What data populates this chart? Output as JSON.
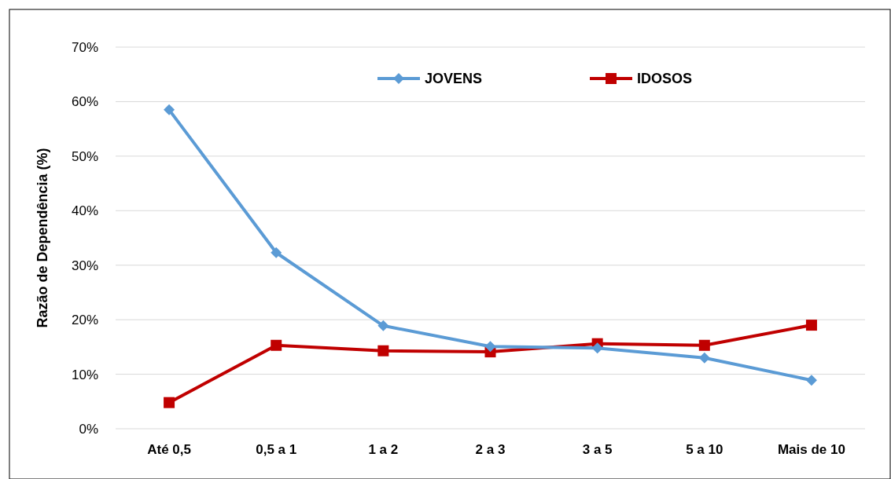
{
  "chart_data": {
    "type": "line",
    "ylabel": "Razão de Dependência (%)",
    "categories": [
      "Até 0,5",
      "0,5 a 1",
      "1 a 2",
      "2 a 3",
      "3 a 5",
      "5 a 10",
      "Mais de 10"
    ],
    "series": [
      {
        "name": "JOVENS",
        "color": "#5b9bd5",
        "marker": "diamond",
        "values": [
          58.5,
          32.3,
          18.9,
          15.1,
          14.8,
          13.0,
          8.9
        ]
      },
      {
        "name": "IDOSOS",
        "color": "#c00000",
        "marker": "square",
        "values": [
          4.8,
          15.3,
          14.3,
          14.1,
          15.6,
          15.3,
          19.0
        ]
      }
    ],
    "ylim": [
      0,
      70
    ],
    "yticks": [
      {
        "value": 0,
        "label": "0%"
      },
      {
        "value": 10,
        "label": "10%"
      },
      {
        "value": 20,
        "label": "20%"
      },
      {
        "value": 30,
        "label": "30%"
      },
      {
        "value": 40,
        "label": "40%"
      },
      {
        "value": 50,
        "label": "50%"
      },
      {
        "value": 60,
        "label": "60%"
      },
      {
        "value": 70,
        "label": "70%"
      }
    ],
    "grid": "y",
    "legend": "top right",
    "line_style": "solid"
  }
}
